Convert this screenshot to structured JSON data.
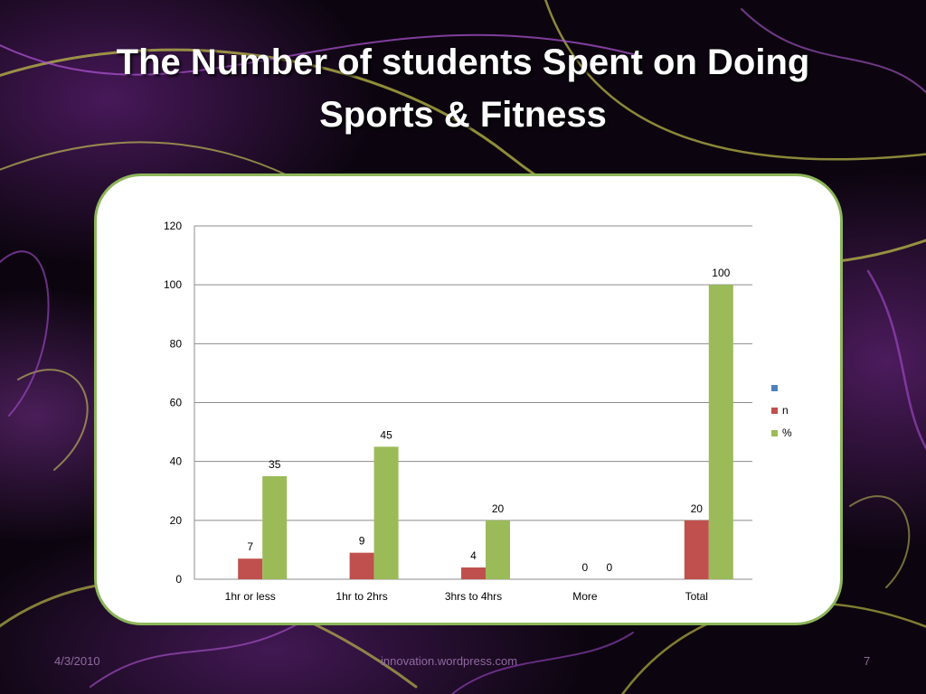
{
  "slide": {
    "title": "The Number of students Spent on Doing Sports & Fitness",
    "footer_date": "4/3/2010",
    "footer_source": "innovation.wordpress.com",
    "page_number": "7"
  },
  "colors": {
    "series_blank": "#4f81bd",
    "series_n": "#c0504d",
    "series_pct": "#9bbb59",
    "panel_border": "#8db55a"
  },
  "chart_data": {
    "type": "bar",
    "categories": [
      "1hr or less",
      "1hr to 2hrs",
      "3hrs to 4hrs",
      "More",
      "Total"
    ],
    "series": [
      {
        "name": "",
        "values": [
          null,
          null,
          null,
          null,
          null
        ]
      },
      {
        "name": "n",
        "values": [
          7,
          9,
          4,
          0,
          20
        ]
      },
      {
        "name": "%",
        "values": [
          35,
          45,
          20,
          0,
          100
        ]
      }
    ],
    "ylim": [
      0,
      120
    ],
    "yticks": [
      0,
      20,
      40,
      60,
      80,
      100,
      120
    ],
    "grid": true,
    "legend": "right"
  }
}
